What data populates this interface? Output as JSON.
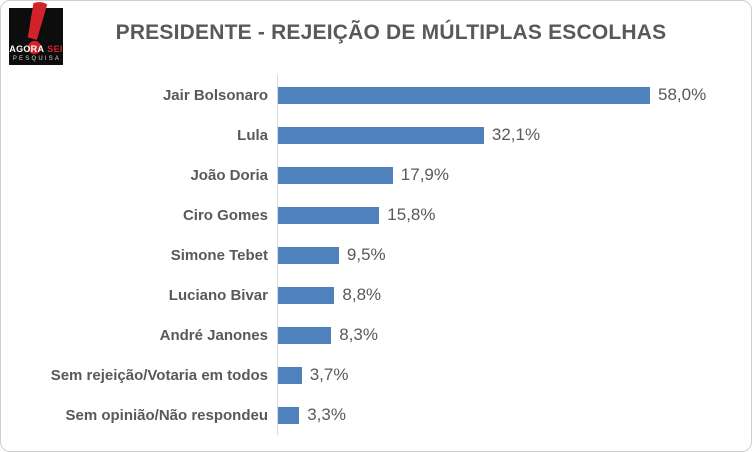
{
  "logo": {
    "name_part1": "AGORA",
    "name_part2": "SEI",
    "subtitle": "PESQUISA",
    "icon": "exclamation-mark-icon"
  },
  "chart_data": {
    "type": "bar",
    "orientation": "horizontal",
    "title": "PRESIDENTE - REJEIÇÃO DE MÚLTIPLAS ESCOLHAS",
    "categories": [
      "Jair Bolsonaro",
      "Lula",
      "João Doria",
      "Ciro Gomes",
      "Simone Tebet",
      "Luciano Bivar",
      "André Janones",
      "Sem rejeição/Votaria em todos",
      "Sem opinião/Não respondeu"
    ],
    "values": [
      58.0,
      32.1,
      17.9,
      15.8,
      9.5,
      8.8,
      8.3,
      3.7,
      3.3
    ],
    "value_labels": [
      "58,0%",
      "32,1%",
      "17,9%",
      "15,8%",
      "9,5%",
      "8,8%",
      "8,3%",
      "3,7%",
      "3,3%"
    ],
    "unit": "%",
    "xlim": [
      0,
      70
    ],
    "grid": false,
    "legend": false,
    "data_label_position": "outside-end",
    "bar_color": "#4F81BD"
  },
  "colors": {
    "bar": "#4F81BD",
    "brand_red": "#D2232A",
    "text_gray": "#595959",
    "axis_line": "#D9D9D9",
    "frame_border": "#CFCFCF"
  }
}
